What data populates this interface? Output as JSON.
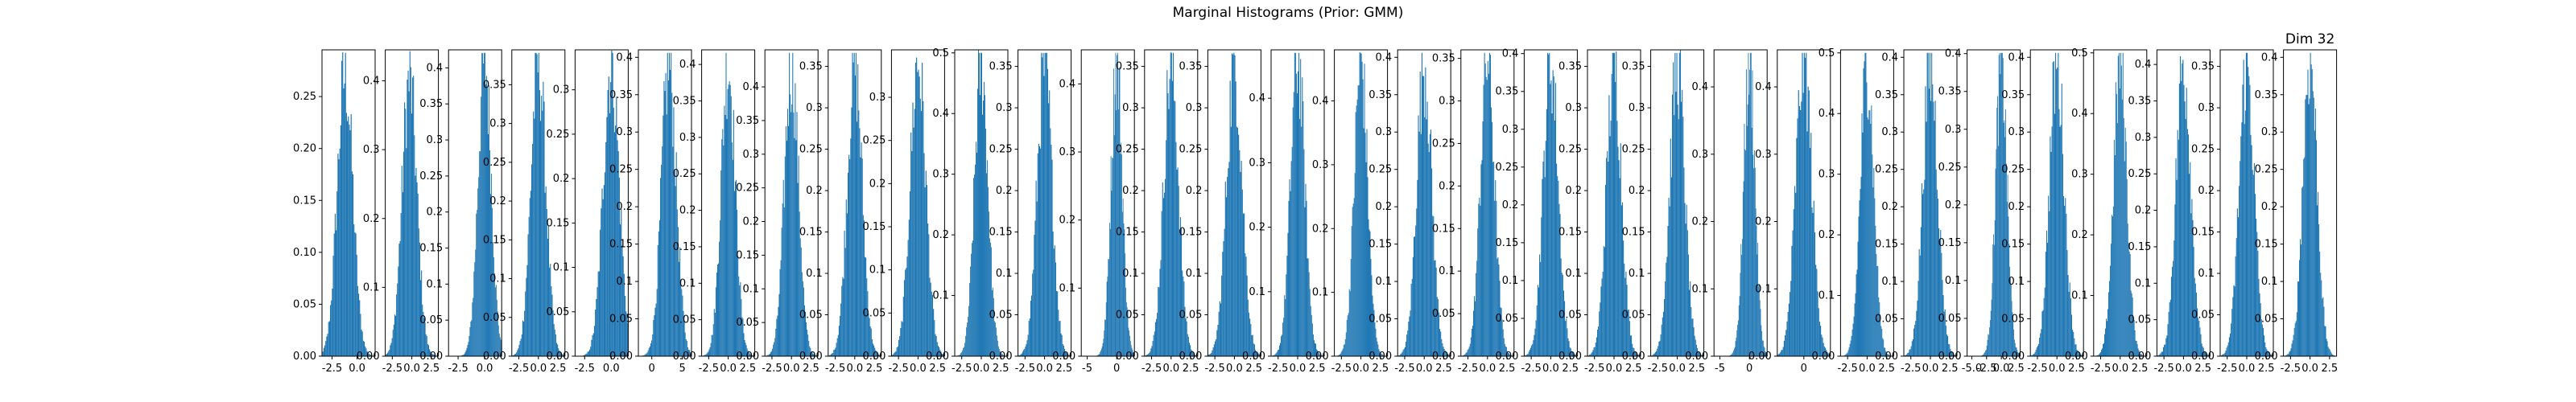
{
  "chart_data": {
    "type": "bar",
    "title": "Marginal Histograms (Prior: GMM)",
    "bar_color": "#1f77b4",
    "grid": false,
    "panel_count": 32,
    "first_panel_yticks": [
      "0.00",
      "0.05",
      "0.10",
      "0.15",
      "0.20",
      "0.25"
    ],
    "panels": [
      {
        "dim": 1,
        "title": "",
        "xticks": [
          "-2.5",
          "0.0"
        ],
        "x_range": [
          -3.5,
          1.8
        ],
        "ytick_values": [
          0.0,
          0.05,
          0.1,
          0.15,
          0.2,
          0.25
        ],
        "ylim": [
          0,
          0.295
        ],
        "peak": 0.27,
        "center": -1.2,
        "sd": 0.78
      },
      {
        "dim": 2,
        "title": "",
        "xticks": [
          "-2.5",
          "0.0",
          "2.5"
        ],
        "x_range": [
          -3.4,
          3.4
        ],
        "ytick_values": [
          0.0,
          0.1,
          0.2,
          0.3,
          0.4
        ],
        "ylim": [
          0,
          0.445
        ],
        "peak": 0.4,
        "center": -0.3,
        "sd": 0.95
      },
      {
        "dim": 3,
        "title": "",
        "xticks": [
          "-2.5",
          "0.0"
        ],
        "x_range": [
          -3.4,
          1.6
        ],
        "ytick_values": [
          0.0,
          0.05,
          0.1,
          0.15,
          0.2,
          0.25,
          0.3,
          0.35,
          0.4
        ],
        "ylim": [
          0,
          0.425
        ],
        "peak": 0.41,
        "center": 0.0,
        "sd": 0.62
      },
      {
        "dim": 4,
        "title": "",
        "xticks": [
          "-2.5",
          "0.0",
          "2.5"
        ],
        "x_range": [
          -3.4,
          3.4
        ],
        "ytick_values": [
          0.0,
          0.05,
          0.1,
          0.15,
          0.2,
          0.25,
          0.3,
          0.35
        ],
        "ylim": [
          0,
          0.395
        ],
        "peak": 0.38,
        "center": 0.0,
        "sd": 0.95
      },
      {
        "dim": 5,
        "title": "",
        "xticks": [
          "-2.5",
          "0.0"
        ],
        "x_range": [
          -3.4,
          1.6
        ],
        "ytick_values": [
          0.0,
          0.05,
          0.1,
          0.15,
          0.2,
          0.25,
          0.3
        ],
        "ylim": [
          0,
          0.345
        ],
        "peak": 0.33,
        "center": 0.0,
        "sd": 0.75
      },
      {
        "dim": 6,
        "title": "",
        "xticks": [
          "0",
          "5"
        ],
        "x_range": [
          -2.2,
          6.5
        ],
        "ytick_values": [
          0.0,
          0.05,
          0.1,
          0.15,
          0.2,
          0.25,
          0.3,
          0.35,
          0.4
        ],
        "ylim": [
          0,
          0.41
        ],
        "peak": 0.39,
        "center": 2.8,
        "sd": 1.2
      },
      {
        "dim": 7,
        "title": "",
        "xticks": [
          "-2.5",
          "0.0",
          "2.5"
        ],
        "x_range": [
          -3.4,
          3.4
        ],
        "ytick_values": [
          0.0,
          0.05,
          0.1,
          0.15,
          0.2,
          0.25,
          0.3,
          0.35,
          0.4
        ],
        "ylim": [
          0,
          0.42
        ],
        "peak": 0.4,
        "center": 0.0,
        "sd": 0.9
      },
      {
        "dim": 8,
        "title": "",
        "xticks": [
          "-2.5",
          "0.0",
          "2.5"
        ],
        "x_range": [
          -3.4,
          3.4
        ],
        "ytick_values": [
          0.0,
          0.05,
          0.1,
          0.15,
          0.2,
          0.25,
          0.3,
          0.35,
          0.4
        ],
        "ylim": [
          0,
          0.455
        ],
        "peak": 0.43,
        "center": 0.0,
        "sd": 0.9
      },
      {
        "dim": 9,
        "title": "",
        "xticks": [
          "-2.5",
          "0.0",
          "2.5"
        ],
        "x_range": [
          -3.4,
          3.4
        ],
        "ytick_values": [
          0.0,
          0.05,
          0.1,
          0.15,
          0.2,
          0.25,
          0.3,
          0.35
        ],
        "ylim": [
          0,
          0.37
        ],
        "peak": 0.35,
        "center": 0.0,
        "sd": 0.95
      },
      {
        "dim": 10,
        "title": "",
        "xticks": [
          "-2.5",
          "0.0",
          "2.5"
        ],
        "x_range": [
          -3.4,
          3.4
        ],
        "ytick_values": [
          0.0,
          0.05,
          0.1,
          0.15,
          0.2,
          0.25,
          0.3
        ],
        "ylim": [
          0,
          0.355
        ],
        "peak": 0.34,
        "center": 0.0,
        "sd": 1.0
      },
      {
        "dim": 11,
        "title": "",
        "xticks": [
          "-2.5",
          "0.0",
          "2.5"
        ],
        "x_range": [
          -3.4,
          3.4
        ],
        "ytick_values": [
          0.0,
          0.1,
          0.2,
          0.3,
          0.4,
          0.5
        ],
        "ylim": [
          0,
          0.505
        ],
        "peak": 0.48,
        "center": 0.0,
        "sd": 0.85
      },
      {
        "dim": 12,
        "title": "",
        "xticks": [
          "-2.5",
          "0.0",
          "2.5"
        ],
        "x_range": [
          -3.4,
          3.4
        ],
        "ytick_values": [
          0.0,
          0.05,
          0.1,
          0.15,
          0.2,
          0.25,
          0.3,
          0.35
        ],
        "ylim": [
          0,
          0.37
        ],
        "peak": 0.35,
        "center": 0.0,
        "sd": 0.95
      },
      {
        "dim": 13,
        "title": "",
        "xticks": [
          "-5",
          "0"
        ],
        "x_range": [
          -6.0,
          3.0
        ],
        "ytick_values": [
          0.0,
          0.1,
          0.2,
          0.3,
          0.4
        ],
        "ylim": [
          0,
          0.45
        ],
        "peak": 0.43,
        "center": 0.0,
        "sd": 0.95
      },
      {
        "dim": 14,
        "title": "",
        "xticks": [
          "-2.5",
          "0.0",
          "2.5"
        ],
        "x_range": [
          -3.4,
          3.4
        ],
        "ytick_values": [
          0.0,
          0.05,
          0.1,
          0.15,
          0.2,
          0.25,
          0.3,
          0.35
        ],
        "ylim": [
          0,
          0.37
        ],
        "peak": 0.35,
        "center": 0.0,
        "sd": 0.95
      },
      {
        "dim": 15,
        "title": "",
        "xticks": [
          "-2.5",
          "0.0",
          "2.5"
        ],
        "x_range": [
          -3.4,
          3.4
        ],
        "ytick_values": [
          0.0,
          0.05,
          0.1,
          0.15,
          0.2,
          0.25,
          0.3,
          0.35
        ],
        "ylim": [
          0,
          0.37
        ],
        "peak": 0.35,
        "center": 0.0,
        "sd": 1.0
      },
      {
        "dim": 16,
        "title": "",
        "xticks": [
          "-2.5",
          "0.0",
          "2.5"
        ],
        "x_range": [
          -3.4,
          3.4
        ],
        "ytick_values": [
          0.0,
          0.1,
          0.2,
          0.3,
          0.4
        ],
        "ylim": [
          0,
          0.475
        ],
        "peak": 0.46,
        "center": 0.0,
        "sd": 0.9
      },
      {
        "dim": 17,
        "title": "",
        "xticks": [
          "-2.5",
          "0.0",
          "2.5"
        ],
        "x_range": [
          -3.4,
          3.4
        ],
        "ytick_values": [
          0.0,
          0.1,
          0.2,
          0.3,
          0.4
        ],
        "ylim": [
          0,
          0.48
        ],
        "peak": 0.46,
        "center": 0.0,
        "sd": 0.85
      },
      {
        "dim": 18,
        "title": "",
        "xticks": [
          "-2.5",
          "0.0",
          "2.5"
        ],
        "x_range": [
          -3.4,
          3.4
        ],
        "ytick_values": [
          0.0,
          0.05,
          0.1,
          0.15,
          0.2,
          0.25,
          0.3,
          0.35,
          0.4
        ],
        "ylim": [
          0,
          0.41
        ],
        "peak": 0.39,
        "center": 0.0,
        "sd": 0.95
      },
      {
        "dim": 19,
        "title": "",
        "xticks": [
          "-2.5",
          "0.0",
          "2.5"
        ],
        "x_range": [
          -3.4,
          3.4
        ],
        "ytick_values": [
          0.0,
          0.05,
          0.1,
          0.15,
          0.2,
          0.25,
          0.3,
          0.35
        ],
        "ylim": [
          0,
          0.36
        ],
        "peak": 0.35,
        "center": 0.0,
        "sd": 0.9
      },
      {
        "dim": 20,
        "title": "",
        "xticks": [
          "-2.5",
          "0.0",
          "2.5"
        ],
        "x_range": [
          -3.4,
          3.4
        ],
        "ytick_values": [
          0.0,
          0.05,
          0.1,
          0.15,
          0.2,
          0.25,
          0.3,
          0.35,
          0.4
        ],
        "ylim": [
          0,
          0.405
        ],
        "peak": 0.39,
        "center": 0.0,
        "sd": 0.95
      },
      {
        "dim": 21,
        "title": "",
        "xticks": [
          "-2.5",
          "0.0",
          "2.5"
        ],
        "x_range": [
          -3.4,
          3.4
        ],
        "ytick_values": [
          0.0,
          0.05,
          0.1,
          0.15,
          0.2,
          0.25,
          0.3,
          0.35
        ],
        "ylim": [
          0,
          0.37
        ],
        "peak": 0.35,
        "center": 0.0,
        "sd": 0.95
      },
      {
        "dim": 22,
        "title": "",
        "xticks": [
          "-2.5",
          "0.0",
          "2.5"
        ],
        "x_range": [
          -3.4,
          3.4
        ],
        "ytick_values": [
          0.0,
          0.05,
          0.1,
          0.15,
          0.2,
          0.25,
          0.3,
          0.35
        ],
        "ylim": [
          0,
          0.37
        ],
        "peak": 0.35,
        "center": 0.0,
        "sd": 0.95
      },
      {
        "dim": 23,
        "title": "",
        "xticks": [
          "-5",
          "0"
        ],
        "x_range": [
          -6.0,
          3.0
        ],
        "ytick_values": [
          0.0,
          0.1,
          0.2,
          0.3,
          0.4
        ],
        "ylim": [
          0,
          0.455
        ],
        "peak": 0.44,
        "center": 0.0,
        "sd": 0.95
      },
      {
        "dim": 24,
        "title": "",
        "xticks": [
          "0"
        ],
        "x_range": [
          -3.0,
          3.0
        ],
        "ytick_values": [
          0.0,
          0.1,
          0.2,
          0.3,
          0.4
        ],
        "ylim": [
          0,
          0.455
        ],
        "peak": 0.44,
        "center": 0.0,
        "sd": 0.9
      },
      {
        "dim": 25,
        "title": "",
        "xticks": [
          "-2.5",
          "0.0",
          "2.5"
        ],
        "x_range": [
          -3.4,
          3.4
        ],
        "ytick_values": [
          0.0,
          0.1,
          0.2,
          0.3,
          0.4,
          0.5
        ],
        "ylim": [
          0,
          0.505
        ],
        "peak": 0.48,
        "center": 0.0,
        "sd": 0.85
      },
      {
        "dim": 26,
        "title": "",
        "xticks": [
          "-2.5",
          "0.0",
          "2.5"
        ],
        "x_range": [
          -3.4,
          3.4
        ],
        "ytick_values": [
          0.0,
          0.05,
          0.1,
          0.15,
          0.2,
          0.25,
          0.3,
          0.35,
          0.4
        ],
        "ylim": [
          0,
          0.41
        ],
        "peak": 0.39,
        "center": 0.0,
        "sd": 0.95
      },
      {
        "dim": 27,
        "title": "",
        "xticks": [
          "-5.0",
          "-2.5",
          "0.0",
          "2.5"
        ],
        "x_range": [
          -5.8,
          3.2
        ],
        "ytick_values": [
          0.0,
          0.05,
          0.1,
          0.15,
          0.2,
          0.25,
          0.3,
          0.35,
          0.4
        ],
        "ylim": [
          0,
          0.405
        ],
        "peak": 0.39,
        "center": 0.0,
        "sd": 0.95
      },
      {
        "dim": 28,
        "title": "",
        "xticks": [
          "-2.5",
          "0.0",
          "2.5"
        ],
        "x_range": [
          -3.4,
          3.4
        ],
        "ytick_values": [
          0.0,
          0.05,
          0.1,
          0.15,
          0.2,
          0.25,
          0.3,
          0.35,
          0.4
        ],
        "ylim": [
          0,
          0.41
        ],
        "peak": 0.39,
        "center": 0.0,
        "sd": 0.95
      },
      {
        "dim": 29,
        "title": "",
        "xticks": [
          "-2.5",
          "0.0",
          "2.5"
        ],
        "x_range": [
          -3.4,
          3.4
        ],
        "ytick_values": [
          0.0,
          0.1,
          0.2,
          0.3,
          0.4,
          0.5
        ],
        "ylim": [
          0,
          0.505
        ],
        "peak": 0.48,
        "center": 0.0,
        "sd": 0.85
      },
      {
        "dim": 30,
        "title": "",
        "xticks": [
          "-2.5",
          "0.0",
          "2.5"
        ],
        "x_range": [
          -3.4,
          3.4
        ],
        "ytick_values": [
          0.0,
          0.05,
          0.1,
          0.15,
          0.2,
          0.25,
          0.3,
          0.35,
          0.4
        ],
        "ylim": [
          0,
          0.42
        ],
        "peak": 0.4,
        "center": 0.0,
        "sd": 0.95
      },
      {
        "dim": 31,
        "title": "",
        "xticks": [
          "-2.5",
          "0.0",
          "2.5"
        ],
        "x_range": [
          -3.4,
          3.4
        ],
        "ytick_values": [
          0.0,
          0.05,
          0.1,
          0.15,
          0.2,
          0.25,
          0.3,
          0.35
        ],
        "ylim": [
          0,
          0.37
        ],
        "peak": 0.35,
        "center": 0.0,
        "sd": 0.95
      },
      {
        "dim": 32,
        "title": "Dim 32",
        "xticks": [
          "-2.5",
          "0.0",
          "2.5"
        ],
        "x_range": [
          -3.4,
          3.4
        ],
        "ytick_values": [
          0.0,
          0.05,
          0.1,
          0.15,
          0.2,
          0.25,
          0.3,
          0.35,
          0.4
        ],
        "ylim": [
          0,
          0.41
        ],
        "peak": 0.4,
        "center": 0.0,
        "sd": 0.9
      }
    ]
  }
}
